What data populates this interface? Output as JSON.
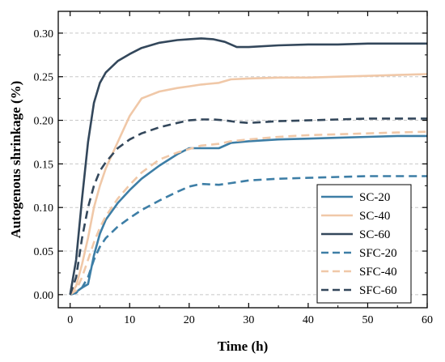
{
  "chart_data": {
    "type": "line",
    "xlabel": "Time (h)",
    "ylabel": "Autogenous shrinkage (%)",
    "xlim": [
      -2,
      60
    ],
    "ylim": [
      -0.015,
      0.325
    ],
    "xticks": [
      "0",
      "10",
      "20",
      "30",
      "40",
      "50",
      "60"
    ],
    "yticks": [
      "0.00",
      "0.05",
      "0.10",
      "0.15",
      "0.20",
      "0.25",
      "0.30"
    ],
    "grid": "horizontal-dashed",
    "legend_position": "bottom-right",
    "series": [
      {
        "name": "SC-20",
        "color": "#3d7ea6",
        "dash": "solid",
        "x": [
          0,
          1,
          2,
          3,
          4,
          5,
          6,
          8,
          10,
          12,
          15,
          18,
          20,
          22,
          25,
          27,
          30,
          35,
          40,
          45,
          50,
          55,
          60
        ],
        "y": [
          0,
          0.003,
          0.008,
          0.012,
          0.045,
          0.07,
          0.086,
          0.105,
          0.12,
          0.133,
          0.148,
          0.161,
          0.168,
          0.168,
          0.168,
          0.174,
          0.176,
          0.178,
          0.179,
          0.18,
          0.181,
          0.182,
          0.182
        ]
      },
      {
        "name": "SC-40",
        "color": "#f0c8a8",
        "dash": "solid",
        "x": [
          0,
          1,
          2,
          3,
          4,
          5,
          6,
          8,
          10,
          12,
          15,
          18,
          20,
          22,
          25,
          27,
          30,
          35,
          40,
          45,
          50,
          55,
          60
        ],
        "y": [
          0,
          0.01,
          0.035,
          0.065,
          0.1,
          0.125,
          0.145,
          0.175,
          0.205,
          0.225,
          0.233,
          0.237,
          0.239,
          0.241,
          0.243,
          0.247,
          0.248,
          0.249,
          0.249,
          0.25,
          0.251,
          0.252,
          0.253
        ]
      },
      {
        "name": "SC-60",
        "color": "#33475b",
        "dash": "solid",
        "x": [
          0,
          1,
          2,
          3,
          4,
          5,
          6,
          8,
          10,
          12,
          15,
          18,
          20,
          22,
          24,
          26,
          28,
          30,
          35,
          40,
          45,
          50,
          55,
          60
        ],
        "y": [
          0,
          0.04,
          0.11,
          0.175,
          0.22,
          0.243,
          0.255,
          0.268,
          0.276,
          0.283,
          0.289,
          0.292,
          0.293,
          0.294,
          0.293,
          0.29,
          0.284,
          0.284,
          0.286,
          0.287,
          0.287,
          0.288,
          0.288,
          0.288
        ]
      },
      {
        "name": "SFC-20",
        "color": "#3d7ea6",
        "dash": "dashed",
        "x": [
          0,
          1,
          2,
          3,
          4,
          5,
          6,
          8,
          10,
          12,
          15,
          18,
          20,
          22,
          25,
          27,
          30,
          35,
          40,
          45,
          50,
          55,
          60
        ],
        "y": [
          0,
          0.002,
          0.008,
          0.02,
          0.04,
          0.055,
          0.065,
          0.078,
          0.088,
          0.097,
          0.108,
          0.118,
          0.124,
          0.127,
          0.126,
          0.128,
          0.131,
          0.133,
          0.134,
          0.135,
          0.136,
          0.136,
          0.136
        ]
      },
      {
        "name": "SFC-40",
        "color": "#f0c8a8",
        "dash": "dashed",
        "x": [
          0,
          1,
          2,
          3,
          4,
          5,
          6,
          8,
          10,
          12,
          15,
          18,
          20,
          22,
          25,
          27,
          30,
          35,
          40,
          45,
          50,
          55,
          60
        ],
        "y": [
          0,
          0.005,
          0.02,
          0.04,
          0.06,
          0.077,
          0.09,
          0.11,
          0.126,
          0.14,
          0.155,
          0.163,
          0.167,
          0.171,
          0.173,
          0.176,
          0.178,
          0.181,
          0.183,
          0.184,
          0.185,
          0.186,
          0.187
        ]
      },
      {
        "name": "SFC-60",
        "color": "#33475b",
        "dash": "dashed",
        "x": [
          0,
          1,
          2,
          3,
          4,
          5,
          6,
          8,
          10,
          12,
          15,
          18,
          20,
          22,
          24,
          26,
          28,
          30,
          35,
          40,
          45,
          50,
          55,
          60
        ],
        "y": [
          0,
          0.02,
          0.065,
          0.1,
          0.125,
          0.142,
          0.152,
          0.168,
          0.178,
          0.185,
          0.192,
          0.197,
          0.2,
          0.201,
          0.201,
          0.2,
          0.198,
          0.197,
          0.199,
          0.2,
          0.201,
          0.202,
          0.202,
          0.202
        ]
      }
    ]
  }
}
